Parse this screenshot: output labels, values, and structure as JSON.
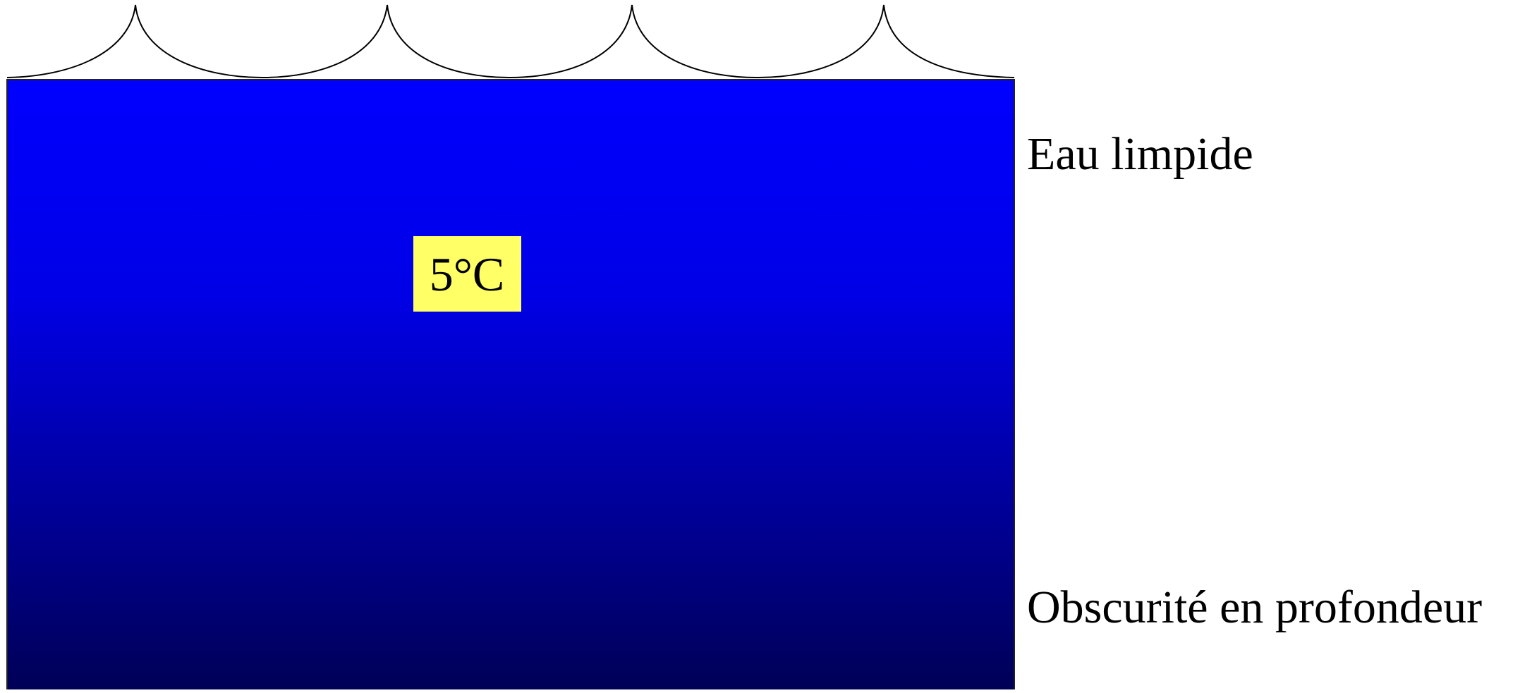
{
  "labels": {
    "surface": "Eau limpide",
    "temperature": "5°C",
    "depth": "Obscurité en profondeur"
  }
}
